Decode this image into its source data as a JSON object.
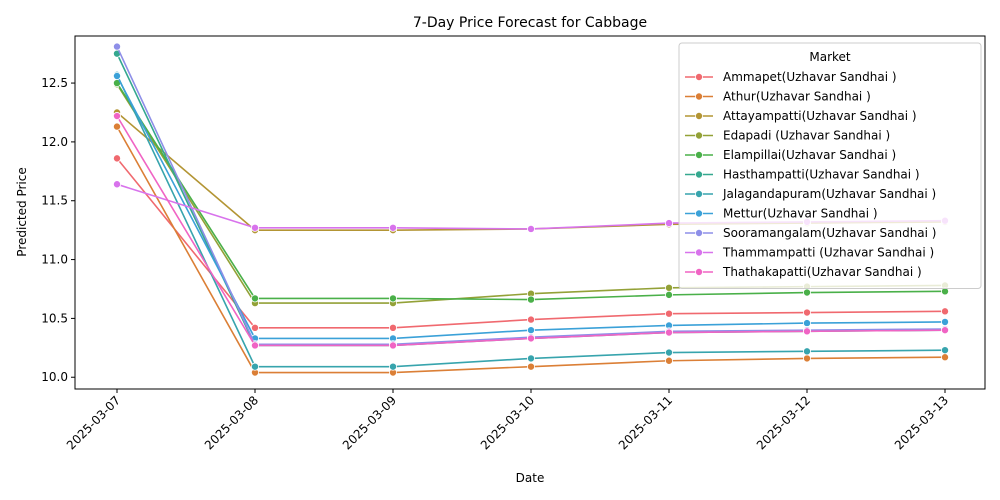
{
  "chart_data": {
    "type": "line",
    "title": "7-Day Price Forecast for Cabbage",
    "xlabel": "Date",
    "ylabel": "Predicted Price",
    "x": [
      "2025-03-07",
      "2025-03-08",
      "2025-03-09",
      "2025-03-10",
      "2025-03-11",
      "2025-03-12",
      "2025-03-13"
    ],
    "ylim": [
      9.9,
      12.9
    ],
    "yticks": [
      "10.0",
      "10.5",
      "11.0",
      "11.5",
      "12.0",
      "12.5"
    ],
    "grid": false,
    "legend": {
      "title": "Market",
      "placement": "top-right"
    },
    "series": [
      {
        "name": "Ammapet(Uzhavar Sandhai )",
        "color": "#f0696f",
        "values": [
          11.86,
          10.42,
          10.42,
          10.49,
          10.54,
          10.55,
          10.56
        ]
      },
      {
        "name": "Athur(Uzhavar Sandhai )",
        "color": "#db7f36",
        "values": [
          12.13,
          10.04,
          10.04,
          10.09,
          10.14,
          10.16,
          10.17
        ]
      },
      {
        "name": "Attayampatti(Uzhavar Sandhai )",
        "color": "#b39534",
        "values": [
          12.25,
          11.25,
          11.25,
          11.26,
          11.3,
          11.31,
          11.32
        ]
      },
      {
        "name": "Edapadi (Uzhavar Sandhai )",
        "color": "#93a137",
        "values": [
          12.49,
          10.63,
          10.63,
          10.71,
          10.76,
          10.77,
          10.78
        ]
      },
      {
        "name": "Elampillai(Uzhavar Sandhai )",
        "color": "#4ab049",
        "values": [
          12.5,
          10.67,
          10.67,
          10.66,
          10.7,
          10.72,
          10.73
        ]
      },
      {
        "name": "Hasthampatti(Uzhavar Sandhai )",
        "color": "#35a88f",
        "values": [
          12.75,
          10.27,
          10.27,
          10.33,
          10.38,
          10.39,
          10.4
        ]
      },
      {
        "name": "Jalagandapuram(Uzhavar Sandhai )",
        "color": "#37a4ad",
        "values": [
          12.57,
          10.09,
          10.09,
          10.16,
          10.21,
          10.22,
          10.23
        ]
      },
      {
        "name": "Mettur(Uzhavar Sandhai )",
        "color": "#3ba1d8",
        "values": [
          12.56,
          10.33,
          10.33,
          10.4,
          10.44,
          10.46,
          10.47
        ]
      },
      {
        "name": "Sooramangalam(Uzhavar Sandhai )",
        "color": "#8e8fe8",
        "values": [
          12.81,
          10.28,
          10.28,
          10.34,
          10.39,
          10.4,
          10.41
        ]
      },
      {
        "name": "Thammampatti (Uzhavar Sandhai )",
        "color": "#d873ec",
        "values": [
          11.64,
          11.27,
          11.27,
          11.26,
          11.31,
          11.32,
          11.33
        ]
      },
      {
        "name": "Thathakapatti(Uzhavar Sandhai )",
        "color": "#f064c4",
        "values": [
          12.22,
          10.27,
          10.27,
          10.33,
          10.38,
          10.39,
          10.4
        ]
      }
    ]
  }
}
